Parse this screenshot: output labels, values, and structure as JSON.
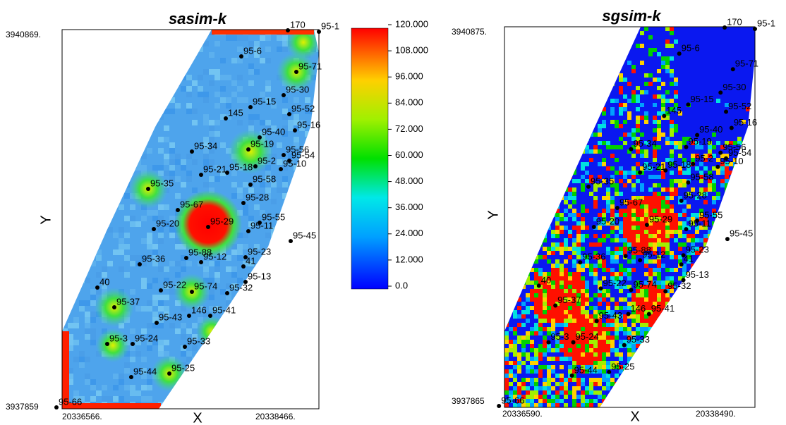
{
  "panels": [
    {
      "title": "sasim-k",
      "y_top": "3940869.",
      "y_bottom": "3937859",
      "x_left": "20336566.",
      "x_right": "20338466.",
      "x_axis": "X",
      "y_axis": "Y"
    },
    {
      "title": "sgsim-k",
      "y_top": "3940875.",
      "y_bottom": "3937865",
      "x_left": "20336590.",
      "x_right": "20338490.",
      "x_axis": "X",
      "y_axis": "Y"
    }
  ],
  "wells": [
    "170",
    "95-1",
    "95-6",
    "95-71",
    "95-30",
    "95-15",
    "145",
    "95-52",
    "95-16",
    "95-40",
    "95-19",
    "95-34",
    "95-56",
    "95-54",
    "95-2",
    "95-10",
    "95-21",
    "95-18",
    "95-58",
    "95-35",
    "95-28",
    "95-67",
    "95-55",
    "95-29",
    "95-20",
    "95-11",
    "95-45",
    "95-23",
    "95-88",
    "95-12",
    "95-36",
    "41",
    "40",
    "95-13",
    "95-22",
    "95-74",
    "95-32",
    "95-37",
    "146",
    "95-41",
    "95-43",
    "95-3",
    "95-24",
    "95-33",
    "95-25",
    "95-44",
    "95-66"
  ],
  "colorbar": {
    "ticks": [
      "120.000",
      "108.000",
      "96.000",
      "84.000",
      "72.000",
      "60.000",
      "48.000",
      "36.000",
      "24.000",
      "12.000",
      "0.0"
    ]
  }
}
